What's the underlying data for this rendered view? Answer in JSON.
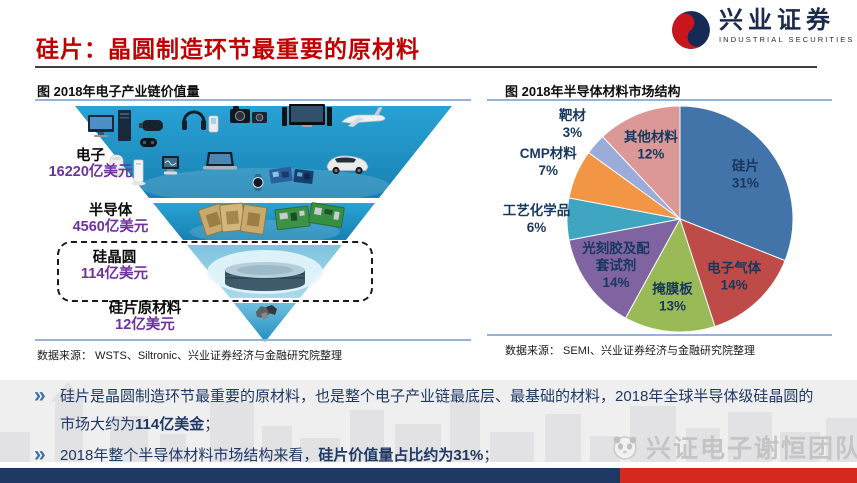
{
  "header": {
    "title": "硅片：晶圆制造环节最重要的原材料",
    "logo": {
      "name_cn": "兴业证券",
      "name_en": "INDUSTRIAL SECURITIES"
    }
  },
  "left_chart": {
    "caption": "图  2018年电子产业链价值量",
    "source": "数据来源： WSTS、Siltronic、兴业证券经济与金融研究院整理",
    "funnel_levels": [
      {
        "name": "电子",
        "value": "16220亿美元"
      },
      {
        "name": "半导体",
        "value": "4560亿美元"
      },
      {
        "name": "硅晶圆",
        "value": "114亿美元",
        "highlighted": true
      },
      {
        "name": "硅片原材料",
        "value": "12亿美元"
      }
    ]
  },
  "right_chart": {
    "caption": "图  2018年半导体材料市场结构",
    "source": "数据来源： SEMI、兴业证券经济与金融研究院整理"
  },
  "chart_data": [
    {
      "type": "funnel",
      "title": "2018年电子产业链价值量",
      "categories": [
        "电子",
        "半导体",
        "硅晶圆",
        "硅片原材料"
      ],
      "values_yi_usd": [
        16220,
        4560,
        114,
        12
      ],
      "value_labels": [
        "16220亿美元",
        "4560亿美元",
        "114亿美元",
        "12亿美元"
      ],
      "highlight_level": "硅晶圆",
      "funnel_color": "#2095CB"
    },
    {
      "type": "pie",
      "title": "2018年半导体材料市场结构",
      "start_angle_deg": 0,
      "direction": "clockwise",
      "label_color": "#17375E",
      "slices": [
        {
          "name": "硅片",
          "pct": 31,
          "color": "#4374A9"
        },
        {
          "name": "电子气体",
          "pct": 14,
          "color": "#BE4B48"
        },
        {
          "name": "掩膜板",
          "pct": 13,
          "color": "#9ABA58"
        },
        {
          "name": "光刻胶及配套试剂",
          "pct": 14,
          "color": "#8064A2"
        },
        {
          "name": "工艺化学品",
          "pct": 6,
          "color": "#3FA5C0"
        },
        {
          "name": "CMP材料",
          "pct": 7,
          "color": "#F29646"
        },
        {
          "name": "靶材",
          "pct": 3,
          "color": "#9BACD9"
        },
        {
          "name": "其他材料",
          "pct": 12,
          "color": "#DB9896"
        }
      ]
    }
  ],
  "bullets": [
    {
      "segments": [
        {
          "text": "硅片是晶圆制造环节最重要的原材料，也是整个电子产业链最底层、最基础的材料，2018年全球半导体级硅晶圆的市场大约为",
          "bold": false
        },
        {
          "text": "114亿美金",
          "bold": true
        },
        {
          "text": "；",
          "bold": false
        }
      ]
    },
    {
      "segments": [
        {
          "text": "2018年整个半导体材料市场结构来看，",
          "bold": false
        },
        {
          "text": "硅片价值量占比约为31%",
          "bold": true
        },
        {
          "text": "；",
          "bold": false
        }
      ]
    }
  ],
  "watermark": {
    "text": "兴证电子谢恒团队"
  },
  "theme": {
    "title_red": "#C00000",
    "value_purple": "#7030A0",
    "text_navy": "#1F3864",
    "footer_navy": "#1F3864",
    "footer_red": "#D5281E",
    "rule_blue": "#95B3D7"
  }
}
